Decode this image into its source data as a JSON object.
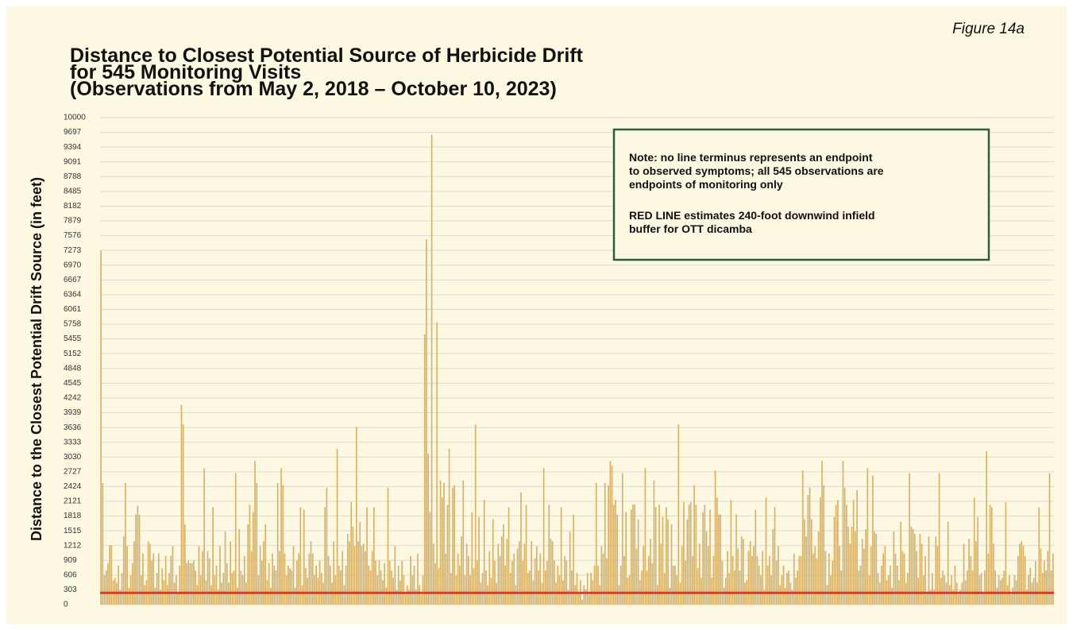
{
  "chart_data": {
    "type": "bar",
    "title_lines": [
      "Distance to Closest Potential Source of Herbicide Drift",
      "for 545 Monitoring Visits",
      "(Observations from May 2, 2018 – October 10, 2023)"
    ],
    "figure_label": "Figure 14a",
    "y_label": "Distance to the Closest Potential Drift Source (in feet)",
    "note": [
      "Note: no line terminus represents an endpoint",
      "to observed symptoms; all 545 observations are",
      "endpoints of monitoring only",
      "RED LINE estimates 240-foot downwind infield",
      "buffer for OTT dicamba"
    ],
    "color": "#d6b26a",
    "reference_line": {
      "value": 240,
      "color": "#e8352a"
    },
    "grid": true,
    "ylim": [
      0,
      10000
    ],
    "yticks": [
      0,
      303,
      606,
      909,
      1212,
      1515,
      1818,
      2121,
      2424,
      2727,
      3030,
      3333,
      3636,
      3939,
      4242,
      4545,
      4848,
      5152,
      5455,
      5758,
      6061,
      6364,
      6667,
      6970,
      7273,
      7576,
      7879,
      8182,
      8485,
      8788,
      9091,
      9394,
      9697,
      10000
    ],
    "values": [
      7270,
      2500,
      600,
      700,
      850,
      1220,
      1220,
      500,
      550,
      450,
      800,
      300,
      650,
      1400,
      2500,
      1200,
      350,
      600,
      850,
      1300,
      1850,
      2030,
      1850,
      600,
      1050,
      400,
      500,
      1300,
      1250,
      900,
      1050,
      350,
      650,
      1050,
      300,
      750,
      500,
      1000,
      400,
      650,
      1000,
      1200,
      450,
      600,
      250,
      800,
      4100,
      3700,
      1650,
      850,
      900,
      850,
      850,
      900,
      700,
      400,
      1200,
      600,
      1100,
      2800,
      500,
      1100,
      950,
      400,
      2000,
      600,
      800,
      300,
      1200,
      450,
      650,
      1500,
      850,
      450,
      1300,
      650,
      700,
      2700,
      350,
      1550,
      700,
      600,
      1000,
      450,
      1650,
      2050,
      1100,
      1900,
      2950,
      2500,
      600,
      1200,
      900,
      1300,
      1650,
      500,
      850,
      350,
      1050,
      800,
      700,
      2500,
      1100,
      2800,
      2450,
      1050,
      600,
      800,
      750,
      700,
      1200,
      350,
      900,
      1050,
      2000,
      400,
      1950,
      750,
      550,
      1050,
      1300,
      1050,
      600,
      800,
      550,
      900,
      650,
      450,
      2000,
      2400,
      1000,
      800,
      450,
      1300,
      600,
      3200,
      800,
      700,
      1100,
      400,
      800,
      1450,
      1300,
      2100,
      1600,
      1200,
      3650,
      1300,
      1700,
      1200,
      1250,
      1100,
      2000,
      800,
      700,
      1100,
      2000,
      900,
      600,
      900,
      700,
      500,
      850,
      350,
      2400,
      900,
      700,
      550,
      1200,
      300,
      800,
      500,
      900,
      600,
      250,
      400,
      300,
      1000,
      600,
      800,
      300,
      1050,
      400,
      200,
      600,
      5550,
      7500,
      3100,
      1900,
      9650,
      1250,
      850,
      5800,
      750,
      2550,
      2200,
      2500,
      1050,
      2050,
      3200,
      650,
      2400,
      2450,
      600,
      1050,
      800,
      1400,
      2550,
      600,
      1250,
      1000,
      600,
      1900,
      750,
      3700,
      900,
      1800,
      450,
      650,
      2150,
      700,
      400,
      1100,
      550,
      1750,
      900,
      450,
      1250,
      1000,
      1400,
      1650,
      800,
      1350,
      2000,
      650,
      900,
      1050,
      400,
      1150,
      1300,
      2300,
      900,
      1250,
      2050,
      650,
      700,
      1300,
      500,
      950,
      1200,
      700,
      1050,
      450,
      2800,
      700,
      900,
      2050,
      1350,
      1300,
      900,
      450,
      800,
      600,
      2000,
      500,
      1000,
      900,
      300,
      1500,
      700,
      1850,
      400,
      650,
      250,
      500,
      100,
      400,
      300,
      650,
      200,
      650,
      500,
      800,
      2500,
      800,
      400,
      1200,
      1050,
      2500,
      950,
      2450,
      2950,
      2850,
      2050,
      2150,
      1850,
      400,
      800,
      2700,
      1000,
      1900,
      550,
      600,
      1950,
      2050,
      2050,
      1150,
      1750,
      500,
      700,
      1200,
      2800,
      700,
      1000,
      1350,
      850,
      2550,
      2000,
      400,
      2050,
      1250,
      1800,
      650,
      2000,
      1750,
      350,
      1650,
      800,
      800,
      600,
      3700,
      450,
      1200,
      2100,
      900,
      1750,
      2050,
      2100,
      1000,
      2450,
      2050,
      750,
      1250,
      550,
      1900,
      2050,
      1500,
      1200,
      1950,
      550,
      1000,
      2750,
      2200,
      1850,
      1850,
      900,
      350,
      550,
      1100,
      650,
      2150,
      1000,
      700,
      1850,
      1150,
      700,
      1400,
      1350,
      450,
      500,
      1100,
      1300,
      1000,
      1200,
      1950,
      1000,
      800,
      600,
      1100,
      300,
      2200,
      800,
      1000,
      600,
      1550,
      2000,
      900,
      1200,
      400,
      600,
      800,
      350,
      650,
      700,
      450,
      300,
      1050,
      550,
      700,
      1000,
      1000,
      2750,
      1750,
      1400,
      2250,
      2400,
      1750,
      1050,
      1200,
      950,
      1500,
      2200,
      2950,
      2450,
      1100,
      400,
      1050,
      600,
      900,
      1800,
      2050,
      2150,
      1200,
      700,
      2950,
      2400,
      2050,
      1600,
      1250,
      1600,
      2150,
      1500,
      2350,
      700,
      800,
      1350,
      1150,
      1550,
      2800,
      600,
      1200,
      2650,
      1500,
      1450,
      650,
      450,
      800,
      1050,
      1200,
      500,
      600,
      800,
      350,
      1500,
      1050,
      800,
      500,
      1700,
      1100,
      1050,
      450,
      650,
      2700,
      1600,
      1550,
      1450,
      1100,
      550,
      1450,
      1250,
      600,
      1000,
      250,
      1400,
      300,
      650,
      300,
      1400,
      1200,
      2700,
      550,
      700,
      600,
      450,
      1700,
      400,
      600,
      300,
      800,
      450,
      200,
      300,
      450,
      1250,
      500,
      700,
      1350,
      1000,
      700,
      2200,
      1300,
      1800,
      600,
      650,
      250,
      700,
      3150,
      1050,
      2050,
      2000,
      1250,
      700,
      350,
      600,
      500,
      550,
      700,
      2100,
      400,
      600,
      200,
      350,
      600,
      500,
      1000,
      1250,
      1300,
      1200,
      1000,
      300,
      600,
      750,
      450,
      550,
      900,
      450,
      2000,
      1150,
      650,
      900,
      700,
      1100,
      2700,
      700,
      1050
    ]
  }
}
